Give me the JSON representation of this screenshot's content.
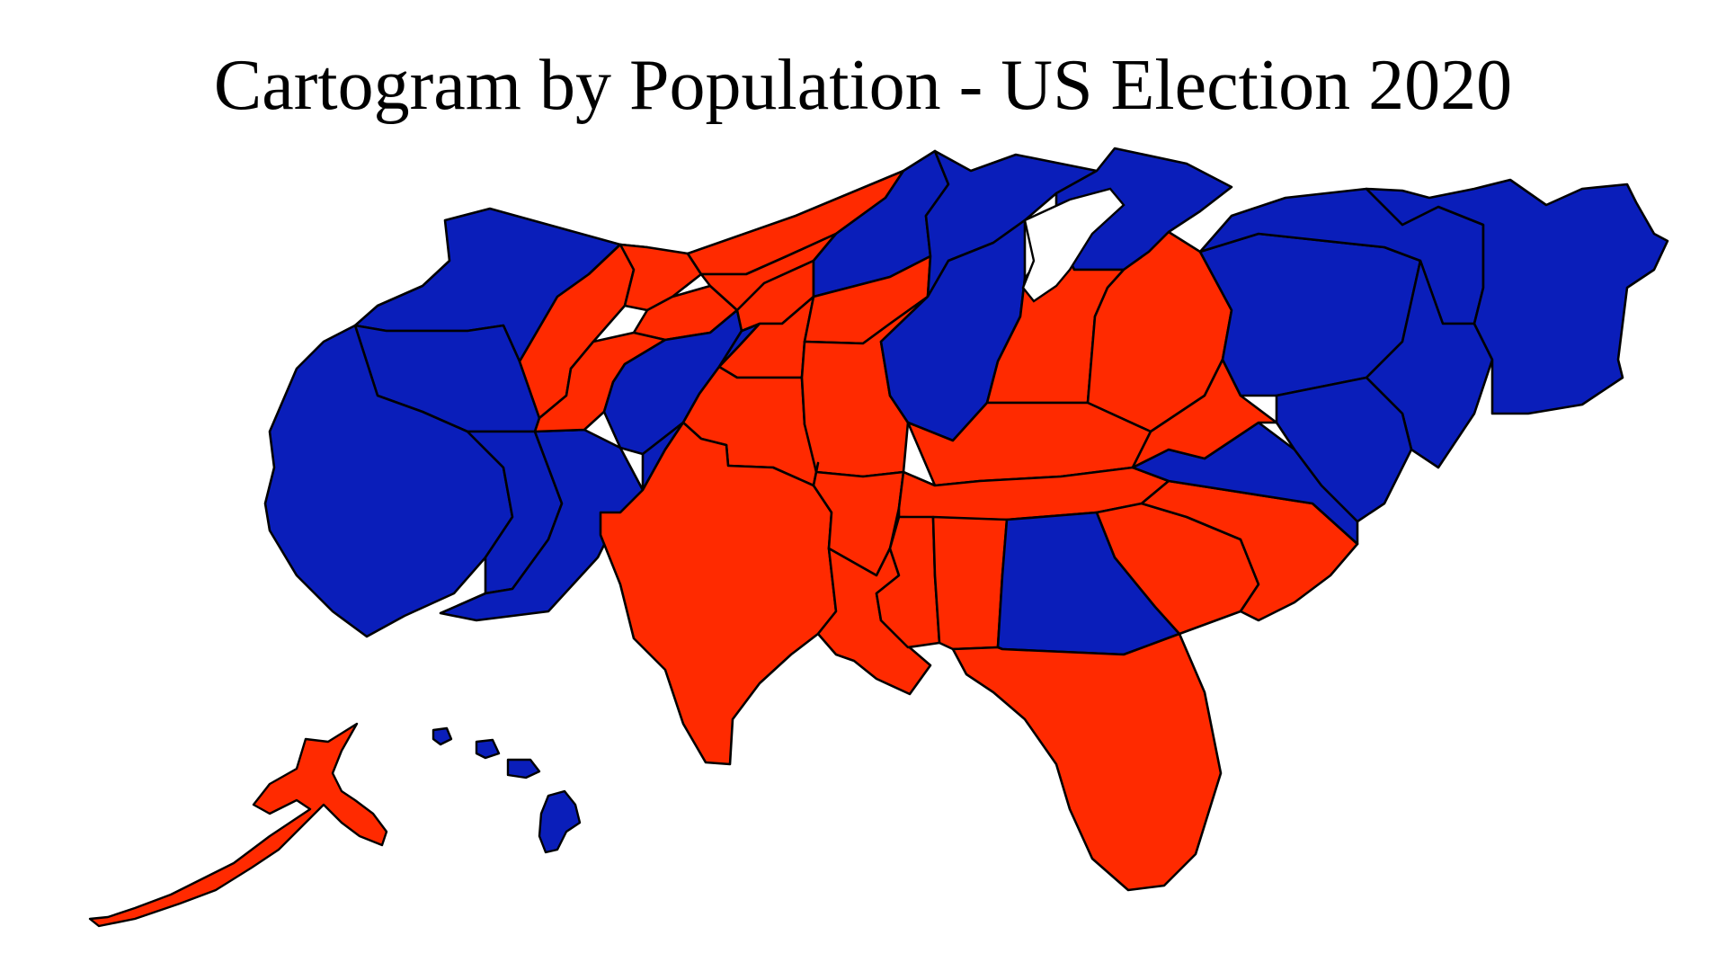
{
  "title": "Cartogram by Population - US Election 2020",
  "colors": {
    "democrat": "#0a1eba",
    "republican": "#ff2a00",
    "border": "#000000",
    "background": "#ffffff"
  },
  "regions": [
    {
      "name": "washington",
      "party": "democrat"
    },
    {
      "name": "oregon",
      "party": "democrat"
    },
    {
      "name": "california",
      "party": "democrat"
    },
    {
      "name": "nevada",
      "party": "democrat"
    },
    {
      "name": "arizona",
      "party": "democrat"
    },
    {
      "name": "idaho",
      "party": "republican"
    },
    {
      "name": "montana",
      "party": "republican"
    },
    {
      "name": "wyoming",
      "party": "republican"
    },
    {
      "name": "utah",
      "party": "republican"
    },
    {
      "name": "colorado",
      "party": "democrat"
    },
    {
      "name": "new-mexico",
      "party": "democrat"
    },
    {
      "name": "north-dakota",
      "party": "republican"
    },
    {
      "name": "south-dakota",
      "party": "republican"
    },
    {
      "name": "nebraska",
      "party": "republican"
    },
    {
      "name": "kansas",
      "party": "republican"
    },
    {
      "name": "oklahoma",
      "party": "republican"
    },
    {
      "name": "texas",
      "party": "republican"
    },
    {
      "name": "minnesota",
      "party": "democrat"
    },
    {
      "name": "iowa",
      "party": "republican"
    },
    {
      "name": "missouri",
      "party": "republican"
    },
    {
      "name": "arkansas",
      "party": "republican"
    },
    {
      "name": "louisiana",
      "party": "republican"
    },
    {
      "name": "wisconsin",
      "party": "democrat"
    },
    {
      "name": "illinois",
      "party": "democrat"
    },
    {
      "name": "michigan",
      "party": "democrat"
    },
    {
      "name": "indiana",
      "party": "republican"
    },
    {
      "name": "ohio",
      "party": "republican"
    },
    {
      "name": "kentucky",
      "party": "republican"
    },
    {
      "name": "tennessee",
      "party": "republican"
    },
    {
      "name": "mississippi",
      "party": "republican"
    },
    {
      "name": "alabama",
      "party": "republican"
    },
    {
      "name": "georgia",
      "party": "democrat"
    },
    {
      "name": "florida",
      "party": "republican"
    },
    {
      "name": "south-carolina",
      "party": "republican"
    },
    {
      "name": "north-carolina",
      "party": "republican"
    },
    {
      "name": "virginia",
      "party": "democrat"
    },
    {
      "name": "west-virginia",
      "party": "republican"
    },
    {
      "name": "pennsylvania",
      "party": "democrat"
    },
    {
      "name": "new-york",
      "party": "democrat"
    },
    {
      "name": "new-jersey",
      "party": "democrat"
    },
    {
      "name": "maryland-delaware",
      "party": "democrat"
    },
    {
      "name": "new-england",
      "party": "democrat"
    },
    {
      "name": "alaska",
      "party": "republican"
    },
    {
      "name": "hawaii",
      "party": "democrat"
    }
  ]
}
